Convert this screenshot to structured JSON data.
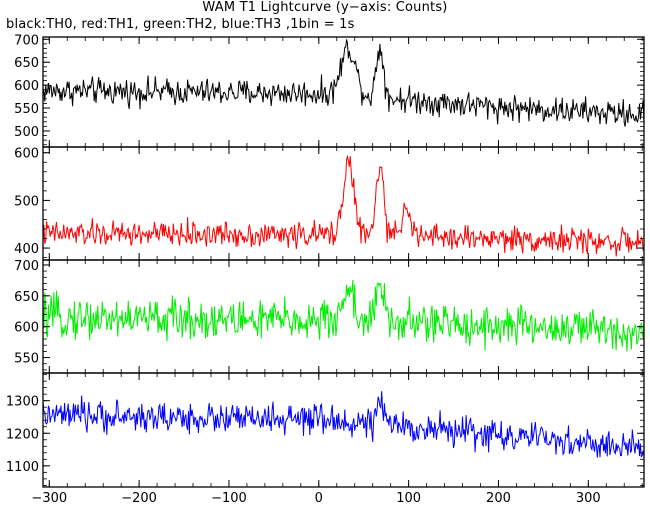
{
  "title": "WAM T1 Lightcurve (y−axis: Counts)",
  "subtitle": "black:TH0, red:TH1, green:TH2, blue:TH3 ,1bin = 1s",
  "chart_data": [
    {
      "type": "line",
      "series_name": "TH0",
      "color": "#000000",
      "xlim": [
        -307,
        362
      ],
      "ylim": [
        465,
        705
      ],
      "yticks": [
        500,
        550,
        600,
        650,
        700
      ],
      "ytick_labels": [
        "500",
        "550",
        "600",
        "650",
        "700"
      ],
      "baseline": [
        [
          -307,
          588
        ],
        [
          0,
          582
        ],
        [
          100,
          568
        ],
        [
          200,
          552
        ],
        [
          362,
          535
        ]
      ],
      "noise": 26,
      "peaks": [
        [
          33,
          8,
          105
        ],
        [
          68,
          4,
          110
        ]
      ]
    },
    {
      "type": "line",
      "series_name": "TH1",
      "color": "#ff0000",
      "xlim": [
        -307,
        362
      ],
      "ylim": [
        375,
        612
      ],
      "yticks": [
        400,
        500,
        600
      ],
      "ytick_labels": [
        "400",
        "500",
        "600"
      ],
      "baseline": [
        [
          -307,
          430
        ],
        [
          0,
          428
        ],
        [
          200,
          420
        ],
        [
          362,
          412
        ]
      ],
      "noise": 24,
      "peaks": [
        [
          33,
          6,
          155
        ],
        [
          68,
          4,
          150
        ],
        [
          97,
          4,
          75
        ]
      ]
    },
    {
      "type": "line",
      "series_name": "TH2",
      "color": "#00ee00",
      "xlim": [
        -307,
        362
      ],
      "ylim": [
        525,
        708
      ],
      "yticks": [
        550,
        600,
        650,
        700
      ],
      "ytick_labels": [
        "550",
        "600",
        "650",
        "700"
      ],
      "baseline": [
        [
          -307,
          615
        ],
        [
          0,
          610
        ],
        [
          200,
          602
        ],
        [
          362,
          592
        ]
      ],
      "noise": 30,
      "peaks": [
        [
          33,
          6,
          55
        ],
        [
          68,
          5,
          50
        ]
      ]
    },
    {
      "type": "line",
      "series_name": "TH3",
      "color": "#0000ff",
      "xlim": [
        -307,
        362
      ],
      "ylim": [
        1035,
        1385
      ],
      "yticks": [
        1100,
        1200,
        1300
      ],
      "ytick_labels": [
        "1100",
        "1200",
        "1300"
      ],
      "baseline": [
        [
          -307,
          1255
        ],
        [
          0,
          1240
        ],
        [
          100,
          1220
        ],
        [
          200,
          1195
        ],
        [
          362,
          1150
        ]
      ],
      "noise": 42,
      "peaks": [
        [
          68,
          4,
          60
        ]
      ]
    }
  ],
  "xaxis": {
    "xlim": [
      -307,
      362
    ],
    "ticks": [
      -300,
      -200,
      -100,
      0,
      100,
      200,
      300
    ],
    "tick_labels": [
      "−300",
      "−200",
      "−100",
      "0",
      "100",
      "200",
      "300"
    ]
  }
}
